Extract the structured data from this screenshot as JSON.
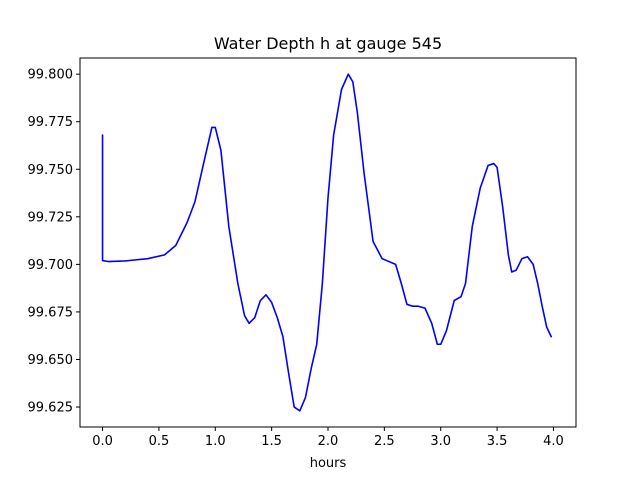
{
  "chart_data": {
    "type": "line",
    "title": "Water Depth h at gauge 545",
    "xlabel": "hours",
    "ylabel": "",
    "xlim": [
      -0.2,
      4.2
    ],
    "ylim": [
      99.6145,
      99.8085
    ],
    "grid": false,
    "legend": "none",
    "x_ticks": [
      0.0,
      0.5,
      1.0,
      1.5,
      2.0,
      2.5,
      3.0,
      3.5,
      4.0
    ],
    "x_tick_labels": [
      "0.0",
      "0.5",
      "1.0",
      "1.5",
      "2.0",
      "2.5",
      "3.0",
      "3.5",
      "4.0"
    ],
    "y_ticks": [
      99.625,
      99.65,
      99.675,
      99.7,
      99.725,
      99.75,
      99.775,
      99.8
    ],
    "y_tick_labels": [
      "99.625",
      "99.650",
      "99.675",
      "99.700",
      "99.725",
      "99.750",
      "99.775",
      "99.800"
    ],
    "series": [
      {
        "color": "#0000ff",
        "x": [
          0.0,
          0.0,
          0.05,
          0.2,
          0.4,
          0.55,
          0.65,
          0.75,
          0.82,
          0.9,
          0.97,
          1.0,
          1.05,
          1.12,
          1.2,
          1.26,
          1.3,
          1.35,
          1.4,
          1.45,
          1.5,
          1.55,
          1.6,
          1.65,
          1.7,
          1.75,
          1.8,
          1.85,
          1.9,
          1.95,
          2.0,
          2.05,
          2.12,
          2.18,
          2.22,
          2.26,
          2.32,
          2.4,
          2.48,
          2.52,
          2.6,
          2.65,
          2.7,
          2.75,
          2.8,
          2.86,
          2.92,
          2.97,
          3.0,
          3.05,
          3.12,
          3.18,
          3.22,
          3.28,
          3.35,
          3.42,
          3.47,
          3.5,
          3.55,
          3.6,
          3.63,
          3.67,
          3.72,
          3.77,
          3.82,
          3.86,
          3.9,
          3.94,
          3.98
        ],
        "y": [
          99.768,
          99.702,
          99.7015,
          99.7018,
          99.703,
          99.705,
          99.71,
          99.722,
          99.733,
          99.754,
          99.772,
          99.772,
          99.76,
          99.72,
          99.69,
          99.673,
          99.669,
          99.672,
          99.681,
          99.684,
          99.68,
          99.672,
          99.662,
          99.643,
          99.625,
          99.623,
          99.63,
          99.645,
          99.658,
          99.69,
          99.735,
          99.768,
          99.792,
          99.8,
          99.796,
          99.78,
          99.748,
          99.712,
          99.703,
          99.702,
          99.7,
          99.69,
          99.679,
          99.678,
          99.678,
          99.677,
          99.669,
          99.658,
          99.658,
          99.665,
          99.681,
          99.683,
          99.69,
          99.72,
          99.74,
          99.752,
          99.753,
          99.751,
          99.73,
          99.705,
          99.696,
          99.697,
          99.703,
          99.704,
          99.7,
          99.69,
          99.678,
          99.667,
          99.662
        ]
      }
    ]
  }
}
